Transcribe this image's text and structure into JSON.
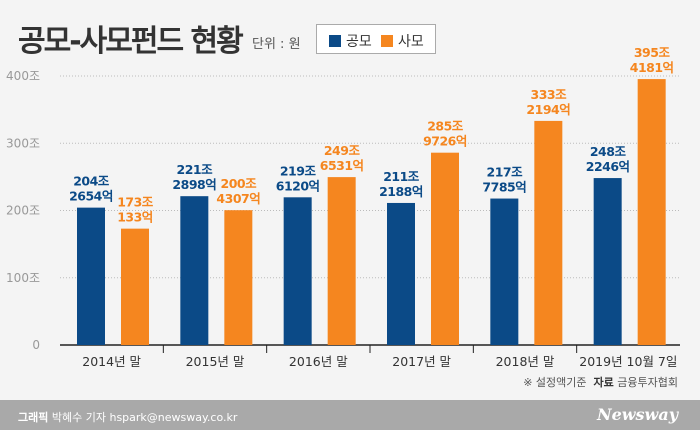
{
  "chart_data": {
    "type": "bar",
    "title": "공모-사모펀드 현황",
    "unit": "단위 : 원",
    "categories": [
      "2014년 말",
      "2015년 말",
      "2016년 말",
      "2017년 말",
      "2018년 말",
      "2019년 10월 7일"
    ],
    "series": [
      {
        "name": "공모",
        "color": "#0b4a87",
        "values": [
          204.2654,
          221.2898,
          219.612,
          211.2188,
          217.7785,
          248.2246
        ],
        "labels": [
          [
            "204조",
            "2654억"
          ],
          [
            "221조",
            "2898억"
          ],
          [
            "219조",
            "6120억"
          ],
          [
            "211조",
            "2188억"
          ],
          [
            "217조",
            "7785억"
          ],
          [
            "248조",
            "2246억"
          ]
        ]
      },
      {
        "name": "사모",
        "color": "#f5861f",
        "values": [
          173.0133,
          200.4307,
          249.6531,
          285.9726,
          333.2194,
          395.4181
        ],
        "labels": [
          [
            "173조",
            "133억"
          ],
          [
            "200조",
            "4307억"
          ],
          [
            "249조",
            "6531억"
          ],
          [
            "285조",
            "9726억"
          ],
          [
            "333조",
            "2194억"
          ],
          [
            "395조",
            "4181억"
          ]
        ]
      }
    ],
    "yticks": [
      "0",
      "100조",
      "200조",
      "300조",
      "400조"
    ],
    "ylim": [
      0,
      400
    ],
    "grid": true,
    "legend": "top"
  },
  "note": {
    "mark": "※ 설정액기준",
    "source_label": "자료",
    "source": "금융투자협회"
  },
  "footer": {
    "label": "그래픽",
    "credit": "박혜수 기자 hspark@newsway.co.kr",
    "logo": "Newsway"
  }
}
